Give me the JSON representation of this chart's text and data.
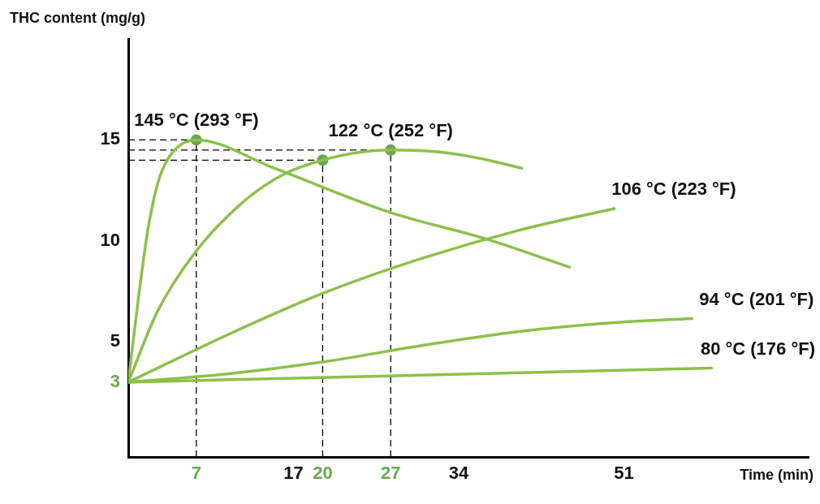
{
  "chart_data": {
    "type": "line",
    "xlabel": "Time (min)",
    "ylabel": "THC content (mg/g)",
    "ref_lines": [
      {
        "axis": "x",
        "value": 7,
        "line_style": "dashed",
        "color": "#000000"
      },
      {
        "axis": "x",
        "value": 20,
        "line_style": "dashed",
        "color": "#000000"
      },
      {
        "axis": "x",
        "value": 27,
        "line_style": "dashed",
        "color": "#000000"
      },
      {
        "axis": "y",
        "value": 15,
        "line_style": "dashed",
        "color": "#000000"
      },
      {
        "axis": "y",
        "value": 14,
        "line_style": "dashed",
        "color": "#000000"
      },
      {
        "axis": "y",
        "value": 14.5,
        "line_style": "dashed",
        "color": "#000000"
      }
    ],
    "xlim": [
      0,
      70
    ],
    "ylim": [
      -0.7,
      20
    ],
    "xticks": [
      7,
      17,
      20,
      27,
      34,
      51
    ],
    "yticks": [
      3,
      5,
      10,
      15
    ],
    "grid": false,
    "legend": false,
    "marker": "none",
    "series": [
      {
        "name": "145 °C (293 °F)",
        "color": "#8dc04a",
        "x": [
          0,
          1,
          2,
          3,
          4,
          5.5,
          7,
          15,
          27,
          36.8,
          45.4
        ],
        "values": [
          3,
          7,
          10.5,
          12.8,
          14,
          14.8,
          15,
          13.6,
          11.4,
          10.1,
          8.7
        ]
      },
      {
        "name": "122 °C (252 °F)",
        "color": "#8dc04a",
        "x": [
          0,
          3,
          7,
          12,
          16,
          20,
          24,
          27,
          32,
          36,
          40.5
        ],
        "values": [
          3,
          6.5,
          9.5,
          12,
          13.3,
          14,
          14.4,
          14.5,
          14.4,
          14.1,
          13.6
        ]
      },
      {
        "name": "106 °C (223 °F)",
        "color": "#8dc04a",
        "x": [
          0,
          10,
          20,
          30,
          40,
          50
        ],
        "values": [
          3,
          5.3,
          7.4,
          9.1,
          10.5,
          11.6
        ]
      },
      {
        "name": "94 °C (201 °F)",
        "color": "#8dc04a",
        "x": [
          0,
          10,
          20,
          30,
          40,
          50,
          58
        ],
        "values": [
          3,
          3.4,
          4,
          4.8,
          5.5,
          5.95,
          6.15
        ]
      },
      {
        "name": "80 °C (176 °F)",
        "color": "#8dc04a",
        "x": [
          0,
          30,
          60
        ],
        "values": [
          3,
          3.35,
          3.7
        ]
      },
      {
        "type": "scatter",
        "color": "#6aa84f",
        "marker": "circle",
        "x": [
          7,
          20,
          27
        ],
        "values": [
          15,
          14,
          14.5
        ]
      }
    ]
  }
}
